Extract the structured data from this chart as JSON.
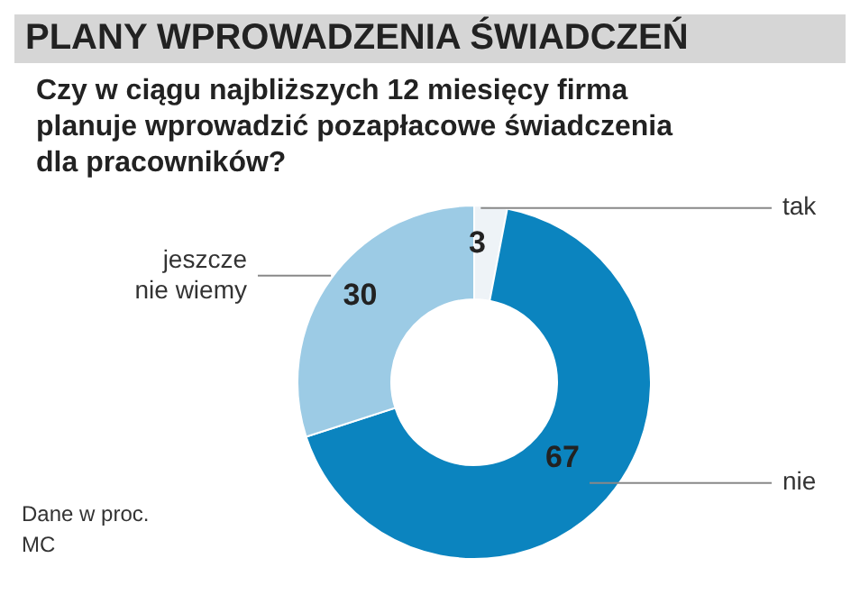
{
  "chart_data": {
    "type": "donut",
    "title": "PLANY WPROWADZENIA ŚWIADCZEŃ",
    "subtitle": "Czy w ciągu najbliższych 12 miesięcy firma planuje wprowadzić pozapłacowe świadczenia dla pracowników?",
    "categories": [
      "tak",
      "nie",
      "jeszcze nie wiemy"
    ],
    "values": [
      3,
      67,
      30
    ],
    "colors": [
      "#eef3f7",
      "#0b84bf",
      "#9ccbe5"
    ],
    "data_labels": true,
    "annotations": [
      "Dane w proc.",
      "MC"
    ]
  }
}
